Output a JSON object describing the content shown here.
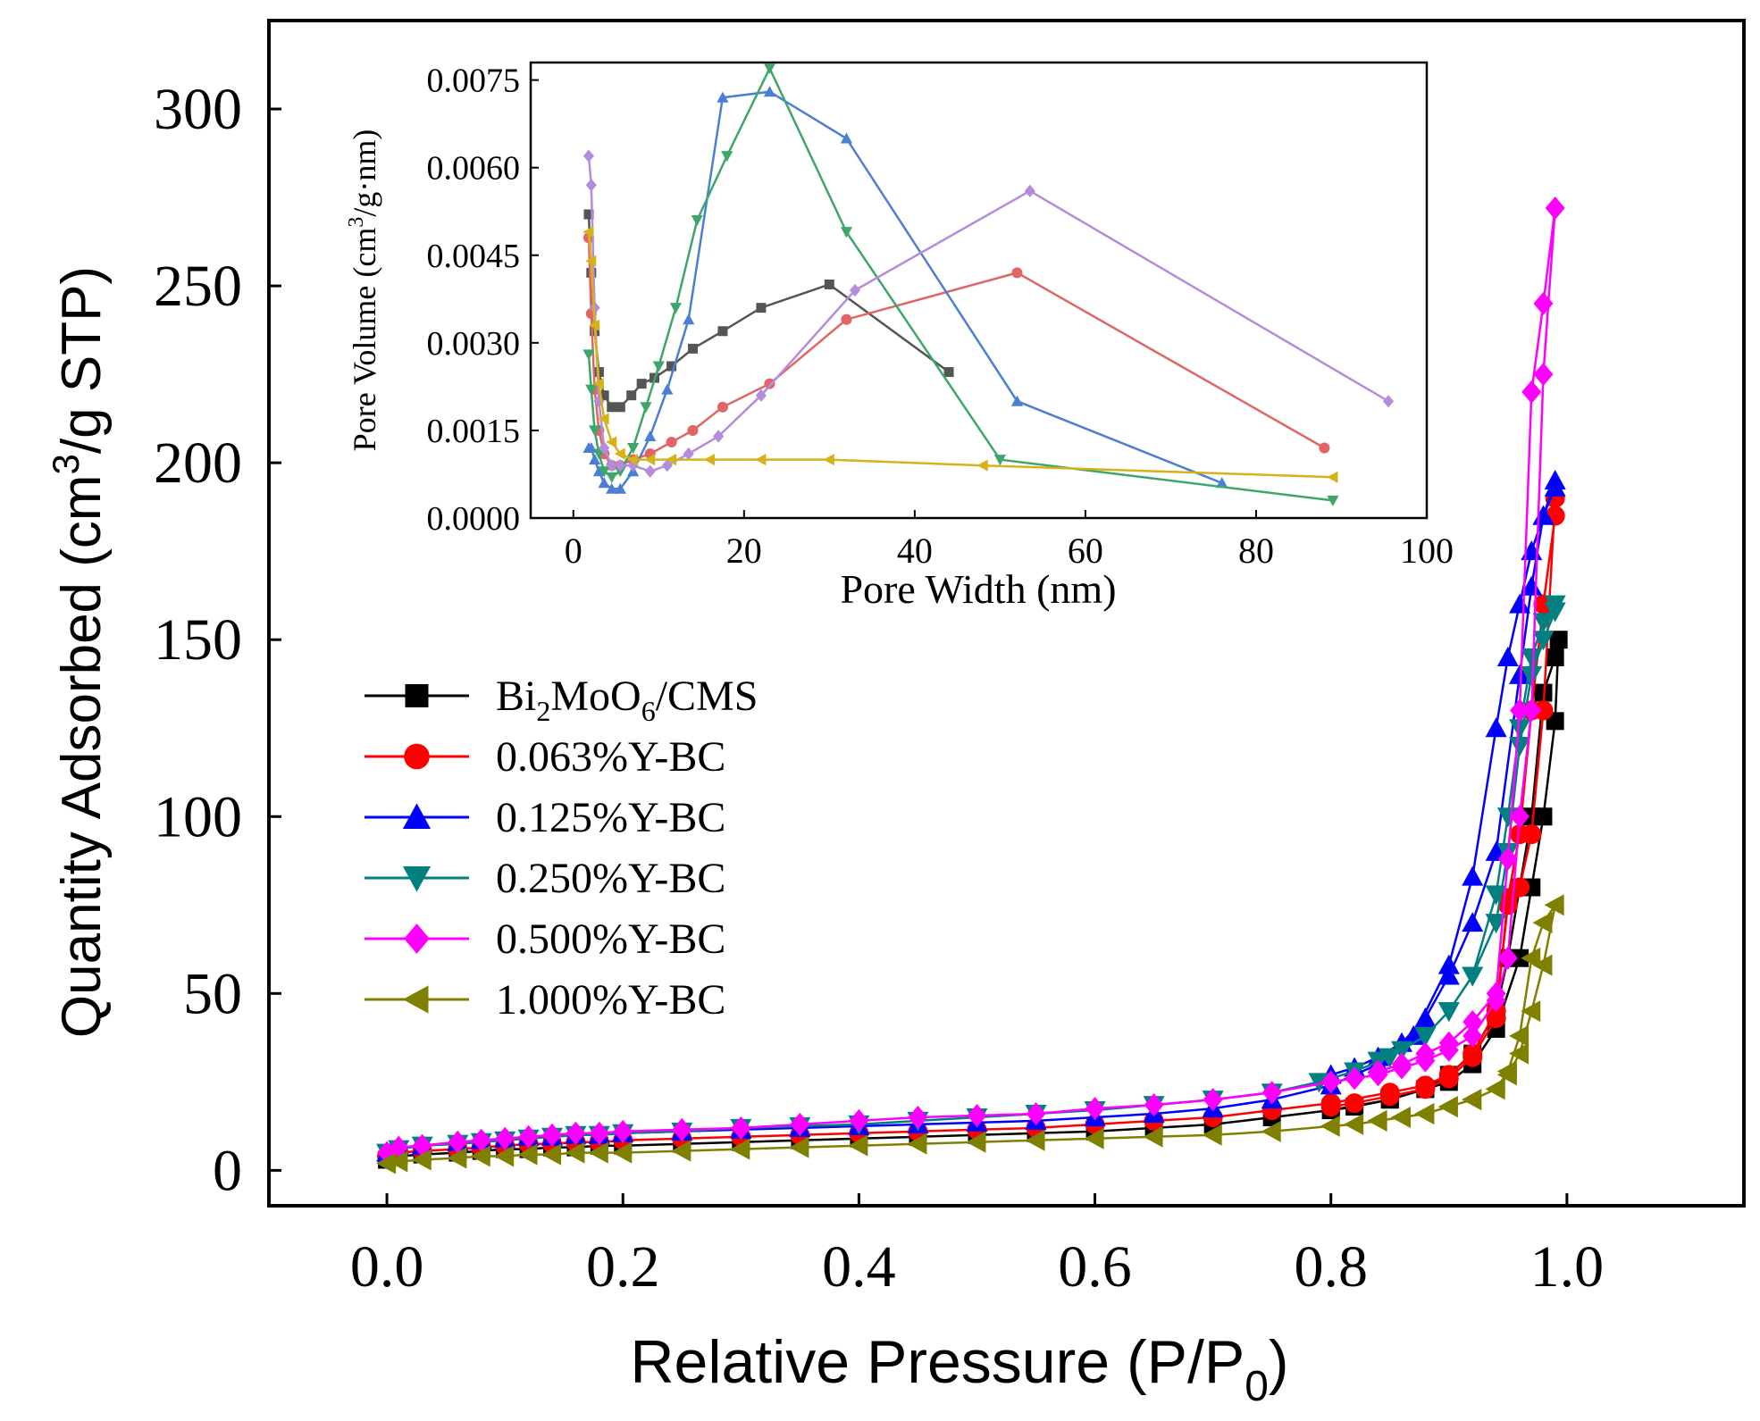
{
  "chart_data": [
    {
      "id": "main",
      "type": "line",
      "title": "",
      "xlabel": "Relative Pressure (P/P",
      "xlabel_sub": "0",
      "xlabel_tail": ")",
      "ylabel": "Quantity Adsorbed (cm",
      "ylabel_sup": "3",
      "ylabel_tail": "/g STP)",
      "xlim": [
        -0.1,
        1.15
      ],
      "ylim": [
        -10,
        325
      ],
      "xticks": [
        0.0,
        0.2,
        0.4,
        0.6,
        0.8,
        1.0
      ],
      "xtick_labels": [
        "0.0",
        "0.2",
        "0.4",
        "0.6",
        "0.8",
        "1.0"
      ],
      "yticks": [
        0,
        50,
        100,
        150,
        200,
        250,
        300
      ],
      "ytick_labels": [
        "0",
        "50",
        "100",
        "150",
        "200",
        "250",
        "300"
      ],
      "legend_position": "middle-left",
      "series": [
        {
          "name": "Bi2MoO6/CMS",
          "label_main": "Bi",
          "label_sub1": "2",
          "label_mid": "MoO",
          "label_sub2": "6",
          "label_tail": "/CMS",
          "color": "#000000",
          "marker": "square",
          "x": [
            0.0,
            0.01,
            0.03,
            0.06,
            0.08,
            0.1,
            0.12,
            0.14,
            0.16,
            0.18,
            0.2,
            0.25,
            0.3,
            0.35,
            0.4,
            0.45,
            0.5,
            0.55,
            0.6,
            0.65,
            0.7,
            0.75,
            0.8,
            0.85,
            0.88,
            0.9,
            0.92,
            0.94,
            0.96,
            0.97,
            0.98,
            0.99,
            0.993,
            0.99,
            0.98,
            0.97,
            0.96,
            0.95,
            0.94,
            0.92,
            0.9,
            0.88,
            0.85,
            0.82,
            0.8
          ],
          "y": [
            3,
            4,
            4.5,
            5,
            5.5,
            6,
            6,
            6.5,
            6.5,
            7,
            7,
            7.5,
            8,
            8.5,
            9,
            9.5,
            10,
            10.5,
            11,
            12,
            13,
            15,
            17,
            20,
            23,
            25,
            30,
            40,
            60,
            80,
            100,
            127,
            150,
            145,
            135,
            100,
            80,
            60,
            45,
            33,
            27,
            23,
            20,
            18,
            17
          ]
        },
        {
          "name": "0.063%Y-BC",
          "color": "#ff0000",
          "marker": "circle",
          "x": [
            0.0,
            0.01,
            0.03,
            0.06,
            0.08,
            0.1,
            0.12,
            0.14,
            0.16,
            0.18,
            0.2,
            0.25,
            0.3,
            0.35,
            0.4,
            0.45,
            0.5,
            0.55,
            0.6,
            0.65,
            0.7,
            0.75,
            0.8,
            0.85,
            0.88,
            0.9,
            0.92,
            0.94,
            0.95,
            0.96,
            0.97,
            0.98,
            0.99,
            0.99,
            0.98,
            0.97,
            0.96,
            0.95,
            0.94,
            0.92,
            0.9,
            0.88,
            0.85,
            0.82,
            0.8
          ],
          "y": [
            4,
            5,
            5.5,
            6,
            6.5,
            7,
            7.5,
            7.5,
            8,
            8,
            8.5,
            9,
            9.5,
            10,
            10.5,
            11,
            11.5,
            12,
            13,
            14,
            15,
            17,
            19,
            22,
            24,
            27,
            33,
            45,
            75,
            80,
            95,
            130,
            190,
            185,
            160,
            130,
            95,
            77,
            43,
            32,
            26,
            23,
            21,
            19,
            18
          ]
        },
        {
          "name": "0.125%Y-BC",
          "color": "#0000ff",
          "marker": "triangle-up",
          "x": [
            0.0,
            0.01,
            0.03,
            0.06,
            0.08,
            0.1,
            0.12,
            0.14,
            0.16,
            0.18,
            0.2,
            0.25,
            0.3,
            0.35,
            0.4,
            0.45,
            0.5,
            0.55,
            0.6,
            0.65,
            0.7,
            0.75,
            0.8,
            0.84,
            0.87,
            0.9,
            0.92,
            0.94,
            0.95,
            0.96,
            0.97,
            0.98,
            0.99,
            0.99,
            0.98,
            0.97,
            0.96,
            0.94,
            0.92,
            0.9,
            0.88,
            0.86,
            0.84,
            0.82,
            0.8
          ],
          "y": [
            5,
            6.5,
            7,
            8,
            8.5,
            9,
            9.5,
            9.5,
            10,
            10,
            10.5,
            11,
            11.5,
            12,
            12.5,
            13,
            13.5,
            14,
            15,
            16,
            17.5,
            20,
            24,
            30,
            38,
            58,
            83,
            125,
            145,
            160,
            175,
            185,
            195,
            193,
            185,
            165,
            140,
            90,
            70,
            55,
            43,
            36,
            32,
            29,
            27
          ]
        },
        {
          "name": "0.250%Y-BC",
          "color": "#008080",
          "marker": "triangle-down",
          "x": [
            0.0,
            0.01,
            0.03,
            0.06,
            0.08,
            0.1,
            0.12,
            0.14,
            0.16,
            0.18,
            0.2,
            0.25,
            0.3,
            0.35,
            0.4,
            0.45,
            0.5,
            0.55,
            0.6,
            0.65,
            0.7,
            0.75,
            0.79,
            0.82,
            0.85,
            0.88,
            0.9,
            0.92,
            0.94,
            0.95,
            0.96,
            0.97,
            0.98,
            0.99,
            0.99,
            0.98,
            0.97,
            0.96,
            0.95,
            0.94,
            0.92,
            0.9,
            0.88,
            0.86,
            0.84
          ],
          "y": [
            5,
            6,
            7,
            7.5,
            8,
            8.5,
            9,
            9.5,
            10,
            10,
            10.5,
            11,
            12,
            12.5,
            13,
            14,
            15,
            16,
            17,
            18.5,
            20,
            22,
            25,
            28,
            32,
            38,
            45,
            55,
            78,
            100,
            125,
            145,
            155,
            160,
            158,
            150,
            140,
            120,
            90,
            70,
            55,
            45,
            38,
            34,
            31
          ]
        },
        {
          "name": "0.500%Y-BC",
          "color": "#ff00ff",
          "marker": "diamond",
          "x": [
            0.0,
            0.01,
            0.03,
            0.06,
            0.08,
            0.1,
            0.12,
            0.14,
            0.16,
            0.18,
            0.2,
            0.25,
            0.3,
            0.35,
            0.4,
            0.45,
            0.5,
            0.55,
            0.6,
            0.65,
            0.7,
            0.75,
            0.8,
            0.82,
            0.84,
            0.86,
            0.88,
            0.9,
            0.92,
            0.94,
            0.95,
            0.96,
            0.97,
            0.98,
            0.99,
            0.98,
            0.97,
            0.96,
            0.95,
            0.94,
            0.92,
            0.9,
            0.88,
            0.86,
            0.84
          ],
          "y": [
            5,
            6.5,
            7,
            8,
            8.5,
            9,
            9.5,
            10,
            10.5,
            10.5,
            11,
            11.5,
            12,
            13,
            14,
            15,
            15.5,
            16,
            17.5,
            18.5,
            20,
            22,
            25,
            26,
            27,
            29,
            31,
            34,
            38,
            48,
            60,
            100,
            130,
            225,
            272,
            245,
            220,
            130,
            88,
            50,
            42,
            36,
            33,
            30,
            28
          ]
        },
        {
          "name": "1.000%Y-BC",
          "color": "#808000",
          "marker": "triangle-left",
          "x": [
            0.0,
            0.01,
            0.03,
            0.06,
            0.08,
            0.1,
            0.12,
            0.14,
            0.16,
            0.18,
            0.2,
            0.25,
            0.3,
            0.35,
            0.4,
            0.45,
            0.5,
            0.55,
            0.6,
            0.65,
            0.7,
            0.75,
            0.8,
            0.82,
            0.84,
            0.86,
            0.88,
            0.9,
            0.92,
            0.94,
            0.95,
            0.96,
            0.97,
            0.98,
            0.99,
            0.98,
            0.97,
            0.96,
            0.95,
            0.94,
            0.92,
            0.9,
            0.88,
            0.86,
            0.84
          ],
          "y": [
            2,
            2.5,
            3,
            3.5,
            4,
            4,
            4.5,
            4.5,
            5,
            5,
            5,
            5.5,
            6,
            6.5,
            7,
            7.5,
            8,
            8.5,
            9,
            9.5,
            10,
            11,
            12.5,
            13,
            14,
            15,
            16,
            18,
            20,
            23,
            27,
            33,
            45,
            58,
            75,
            70,
            60,
            38,
            28,
            23,
            20,
            18,
            16,
            15,
            14
          ]
        }
      ]
    },
    {
      "id": "inset",
      "type": "line",
      "title": "",
      "xlabel": "Pore Width (nm)",
      "ylabel": "Pore Volume (cm",
      "ylabel_sup": "3",
      "ylabel_tail": "/g·nm)",
      "xlim": [
        -5,
        100
      ],
      "ylim": [
        0,
        0.0078
      ],
      "xticks": [
        0,
        20,
        40,
        60,
        80,
        100
      ],
      "xtick_labels": [
        "0",
        "20",
        "40",
        "60",
        "80",
        "100"
      ],
      "yticks": [
        0,
        0.0015,
        0.003,
        0.0045,
        0.006,
        0.0075
      ],
      "ytick_labels": [
        "0.0000",
        "0.0015",
        "0.0030",
        "0.0045",
        "0.0060",
        "0.0075"
      ],
      "series": [
        {
          "name": "Bi2MoO6/CMS",
          "color": "#555555",
          "x": [
            1.8,
            2.1,
            2.5,
            3.0,
            3.6,
            4.5,
            5.5,
            6.8,
            8.0,
            9.5,
            11.5,
            14.0,
            17.5,
            22.0,
            30.0,
            44.0
          ],
          "y": [
            0.0052,
            0.0042,
            0.0032,
            0.0025,
            0.0021,
            0.0019,
            0.0019,
            0.0021,
            0.0023,
            0.0024,
            0.0026,
            0.0029,
            0.0032,
            0.0036,
            0.004,
            0.0025
          ]
        },
        {
          "name": "0.063%Y-BC",
          "color": "#e06666",
          "x": [
            1.8,
            2.1,
            2.5,
            3.0,
            3.6,
            4.5,
            5.5,
            7.0,
            9.0,
            11.5,
            14.0,
            17.5,
            23.0,
            32.0,
            52.0,
            88.0
          ],
          "y": [
            0.0048,
            0.0035,
            0.0022,
            0.0015,
            0.0011,
            0.0009,
            0.0009,
            0.001,
            0.0011,
            0.0013,
            0.0015,
            0.0019,
            0.0023,
            0.0034,
            0.0042,
            0.0012
          ]
        },
        {
          "name": "0.125%Y-BC",
          "color": "#4a7fd4",
          "x": [
            1.8,
            2.1,
            2.5,
            3.0,
            3.6,
            4.5,
            5.5,
            7.0,
            9.0,
            11.0,
            13.5,
            17.5,
            23.0,
            32.0,
            52.0,
            76.0
          ],
          "y": [
            0.0012,
            0.0012,
            0.001,
            0.0008,
            0.0006,
            0.0005,
            0.0005,
            0.0008,
            0.0014,
            0.0022,
            0.0034,
            0.0072,
            0.0073,
            0.0065,
            0.002,
            0.0006
          ]
        },
        {
          "name": "0.250%Y-BC",
          "color": "#3fa66a",
          "x": [
            1.8,
            2.1,
            2.5,
            3.0,
            3.6,
            4.5,
            5.5,
            7.0,
            8.5,
            10.0,
            12.0,
            14.5,
            18.0,
            23.0,
            32.0,
            50.0,
            89.0
          ],
          "y": [
            0.0028,
            0.0022,
            0.0015,
            0.0011,
            0.0008,
            0.0007,
            0.0008,
            0.0012,
            0.0019,
            0.0026,
            0.0036,
            0.0051,
            0.0062,
            0.0077,
            0.0049,
            0.001,
            0.0003
          ]
        },
        {
          "name": "0.500%Y-BC",
          "color": "#b38cdb",
          "x": [
            1.8,
            2.1,
            2.5,
            3.0,
            3.6,
            4.5,
            5.5,
            7.0,
            9.0,
            11.0,
            13.5,
            17.0,
            22.0,
            33.0,
            53.5,
            95.5
          ],
          "y": [
            0.0062,
            0.0057,
            0.0036,
            0.002,
            0.0012,
            0.0009,
            0.0009,
            0.0009,
            0.0008,
            0.0009,
            0.0011,
            0.0014,
            0.0021,
            0.0039,
            0.0056,
            0.002
          ]
        },
        {
          "name": "1.000%Y-BC",
          "color": "#d6b21a",
          "x": [
            1.8,
            2.1,
            2.5,
            3.0,
            3.6,
            4.5,
            5.5,
            7.0,
            9.0,
            11.5,
            16.0,
            22.0,
            30.0,
            48.0,
            89.0
          ],
          "y": [
            0.0049,
            0.0044,
            0.0033,
            0.0023,
            0.0017,
            0.0013,
            0.0011,
            0.001,
            0.001,
            0.001,
            0.001,
            0.001,
            0.001,
            0.0009,
            0.0007
          ]
        }
      ]
    }
  ]
}
